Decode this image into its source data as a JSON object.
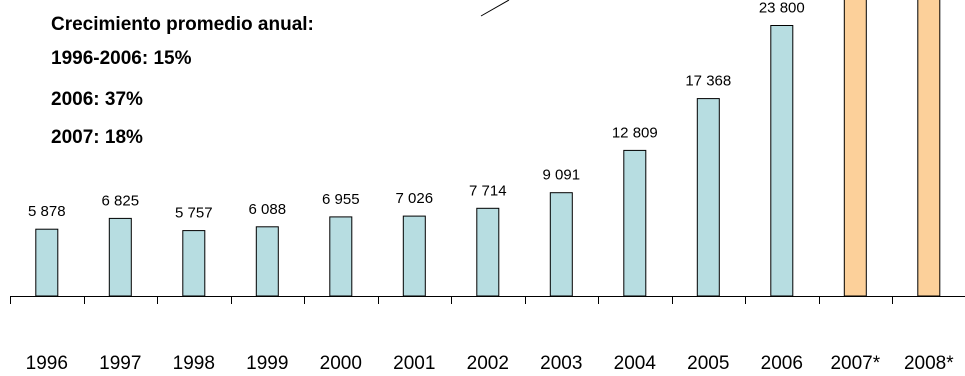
{
  "chart_data": {
    "type": "bar",
    "categories": [
      "1996",
      "1997",
      "1998",
      "1999",
      "2000",
      "2001",
      "2002",
      "2003",
      "2004",
      "2005",
      "2006",
      "2007*",
      "2008*"
    ],
    "values": [
      5878,
      6825,
      5757,
      6088,
      6955,
      7026,
      7714,
      9091,
      12809,
      17368,
      23800,
      null,
      null
    ],
    "value_labels": [
      "5 878",
      "6 825",
      "5 757",
      "6 088",
      "6 955",
      "7 026",
      "7 714",
      "9 091",
      "12 809",
      "17 368",
      "23 800",
      "",
      ""
    ],
    "projected": [
      false,
      false,
      false,
      false,
      false,
      false,
      false,
      false,
      false,
      false,
      false,
      true,
      true
    ],
    "colors": {
      "actual": "#b7dde1",
      "projected": "#fcd09a",
      "edge": "#000000"
    },
    "grid": false,
    "annotations": [
      "Crecimiento promedio anual:",
      "1996-2006: 15%",
      "2006: 37%",
      "2007: 18%"
    ]
  }
}
